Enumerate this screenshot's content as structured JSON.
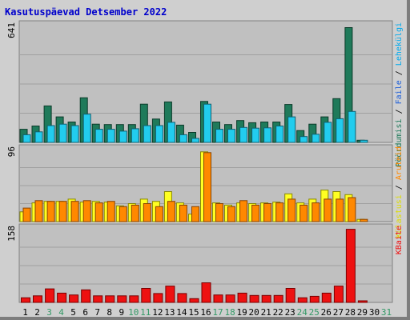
{
  "title": "Kasutuspäevad Detsember 2022",
  "colors": {
    "title": "#0000cc",
    "panel_bg": "#c0c0c0",
    "frame_bg": "#cfcfcf",
    "grid": "#a0a0a0",
    "text": "#000000",
    "weekend_day": "#339966",
    "hits_bar": "#1f7a5a",
    "files_bar": "#22ccee",
    "pages_bar": "#ff8800",
    "visits_bar": "#ffff22",
    "kbytes_bar": "#ee1111"
  },
  "chart_data": [
    {
      "type": "bar",
      "panel": "top",
      "ymax_label": "641",
      "ylim": [
        0,
        641
      ],
      "right_label_parts": [
        {
          "text": "Pöördumisi",
          "color": "#1f7a5a"
        },
        {
          "text": " / ",
          "color": "#000000"
        },
        {
          "text": "Faile",
          "color": "#1e5fd8"
        },
        {
          "text": " / ",
          "color": "#000000"
        },
        {
          "text": "Lehekülgi",
          "color": "#00aaee"
        }
      ],
      "categories": [
        "1",
        "2",
        "3",
        "4",
        "5",
        "6",
        "7",
        "8",
        "9",
        "10",
        "11",
        "12",
        "13",
        "14",
        "15",
        "16",
        "17",
        "18",
        "19",
        "20",
        "21",
        "22",
        "23",
        "24",
        "25",
        "26",
        "27",
        "28",
        "29",
        "30",
        "31"
      ],
      "series": [
        {
          "name": "Pöördumisi",
          "color": "#1f7a5a",
          "values": [
            72,
            90,
            200,
            140,
            112,
            245,
            100,
            98,
            98,
            98,
            210,
            128,
            222,
            95,
            55,
            225,
            112,
            98,
            120,
            108,
            112,
            112,
            208,
            65,
            100,
            140,
            240,
            630,
            12,
            0,
            0
          ]
        },
        {
          "name": "Faile",
          "color": "#22ccee",
          "values": [
            42,
            58,
            92,
            100,
            92,
            155,
            72,
            72,
            62,
            75,
            92,
            92,
            110,
            42,
            22,
            210,
            72,
            72,
            82,
            78,
            80,
            90,
            140,
            32,
            45,
            110,
            130,
            170,
            12,
            0,
            0
          ]
        }
      ]
    },
    {
      "type": "bar",
      "panel": "middle",
      "ymax_label": "96",
      "ylim": [
        0,
        96
      ],
      "right_label_parts": [
        {
          "text": "Külastusi",
          "color": "#dddd00"
        },
        {
          "text": " / ",
          "color": "#000000"
        },
        {
          "text": "Aruteid",
          "color": "#ff8800"
        }
      ],
      "categories": [
        "1",
        "2",
        "3",
        "4",
        "5",
        "6",
        "7",
        "8",
        "9",
        "10",
        "11",
        "12",
        "13",
        "14",
        "15",
        "16",
        "17",
        "18",
        "19",
        "20",
        "21",
        "22",
        "23",
        "24",
        "25",
        "26",
        "27",
        "28",
        "29",
        "30",
        "31"
      ],
      "series": [
        {
          "name": "Külastusi",
          "color": "#ffff22",
          "values": [
            13,
            25,
            27,
            27,
            30,
            26,
            27,
            26,
            21,
            24,
            30,
            27,
            40,
            25,
            10,
            93,
            25,
            22,
            25,
            24,
            25,
            26,
            37,
            25,
            30,
            42,
            40,
            36,
            3,
            0,
            0
          ]
        },
        {
          "name": "Aruteid",
          "color": "#ff8800",
          "values": [
            18,
            28,
            27,
            27,
            27,
            28,
            25,
            27,
            20,
            22,
            24,
            20,
            27,
            22,
            20,
            92,
            24,
            20,
            28,
            22,
            24,
            25,
            30,
            22,
            25,
            30,
            30,
            32,
            3,
            0,
            0
          ]
        }
      ]
    },
    {
      "type": "bar",
      "panel": "bottom",
      "ymax_label": "158",
      "ylim": [
        0,
        158
      ],
      "right_label_parts": [
        {
          "text": "KBaite",
          "color": "#ee1111"
        }
      ],
      "categories": [
        "1",
        "2",
        "3",
        "4",
        "5",
        "6",
        "7",
        "8",
        "9",
        "10",
        "11",
        "12",
        "13",
        "14",
        "15",
        "16",
        "17",
        "18",
        "19",
        "20",
        "21",
        "22",
        "23",
        "24",
        "25",
        "26",
        "27",
        "28",
        "29",
        "30",
        "31"
      ],
      "series": [
        {
          "name": "KBaite",
          "color": "#ee1111",
          "values": [
            10,
            14,
            29,
            20,
            16,
            27,
            14,
            14,
            14,
            14,
            30,
            19,
            35,
            19,
            8,
            42,
            16,
            16,
            20,
            15,
            15,
            15,
            30,
            10,
            13,
            20,
            35,
            157,
            3,
            0,
            0
          ]
        }
      ]
    }
  ],
  "x_axis": {
    "labels": [
      "1",
      "2",
      "3",
      "4",
      "5",
      "6",
      "7",
      "8",
      "9",
      "10",
      "11",
      "12",
      "13",
      "14",
      "15",
      "16",
      "17",
      "18",
      "19",
      "20",
      "21",
      "22",
      "23",
      "24",
      "25",
      "26",
      "27",
      "28",
      "29",
      "30",
      "31"
    ],
    "weekend_days": [
      "3",
      "4",
      "10",
      "11",
      "17",
      "18",
      "24",
      "25",
      "31"
    ]
  }
}
